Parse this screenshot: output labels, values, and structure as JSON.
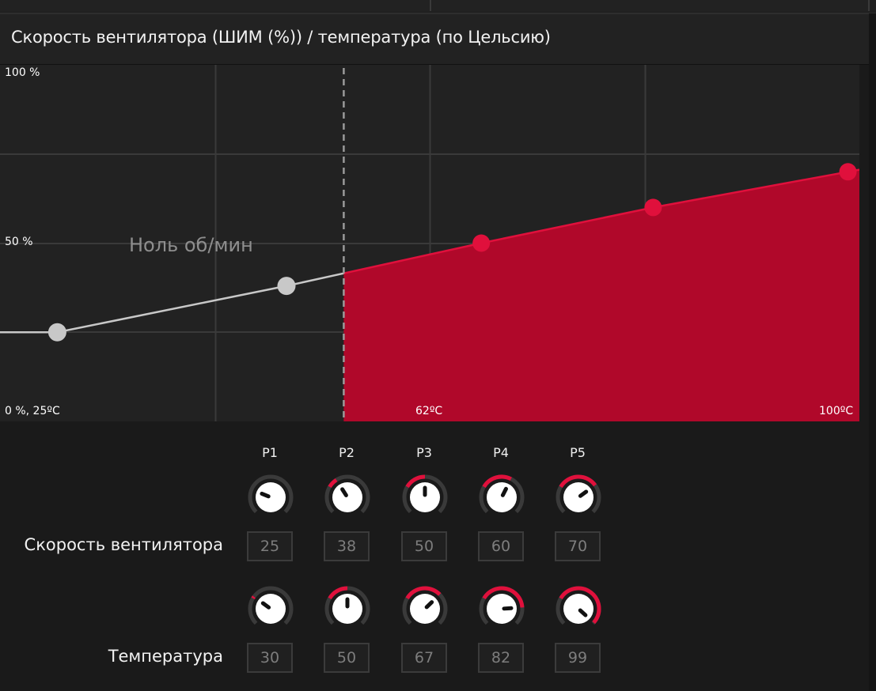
{
  "header": {
    "title": "Скорость вентилятора (ШИМ (%)) / температура (по Цельсию)"
  },
  "chart_data": {
    "type": "area",
    "xlim": [
      25,
      100
    ],
    "ylim": [
      0,
      100
    ],
    "zero_rpm_threshold": 55,
    "zero_rpm_label": "Ноль об/мин",
    "points": [
      {
        "name": "P1",
        "x": 30,
        "y": 25
      },
      {
        "name": "P2",
        "x": 50,
        "y": 38
      },
      {
        "name": "P3",
        "x": 67,
        "y": 50
      },
      {
        "name": "P4",
        "x": 82,
        "y": 60
      },
      {
        "name": "P5",
        "x": 99,
        "y": 70
      }
    ],
    "y_tick_labels": {
      "top": "100 %",
      "mid": "50 %"
    },
    "x_tick_labels": {
      "origin": "0 %, 25ºC",
      "mid": "62ºC",
      "end": "100ºC"
    },
    "colors": {
      "active_fill": "#b0082a",
      "active_line": "#e0103c",
      "inactive_line": "#c8c8c8",
      "grid": "#3a3a3a",
      "background": "#222222"
    }
  },
  "controls": {
    "columns": [
      "P1",
      "P2",
      "P3",
      "P4",
      "P5"
    ],
    "fan_speed": {
      "label": "Скорость вентилятора",
      "values": [
        "25",
        "38",
        "50",
        "60",
        "70"
      ],
      "levels": [
        0.25,
        0.38,
        0.5,
        0.6,
        0.7
      ]
    },
    "temperature": {
      "label": "Температура",
      "values": [
        "30",
        "50",
        "67",
        "82",
        "99"
      ],
      "levels": [
        0.3,
        0.5,
        0.67,
        0.82,
        0.99
      ]
    }
  },
  "colors": {
    "accent": "#e0103c",
    "knob_track": "#3a3a3a"
  }
}
